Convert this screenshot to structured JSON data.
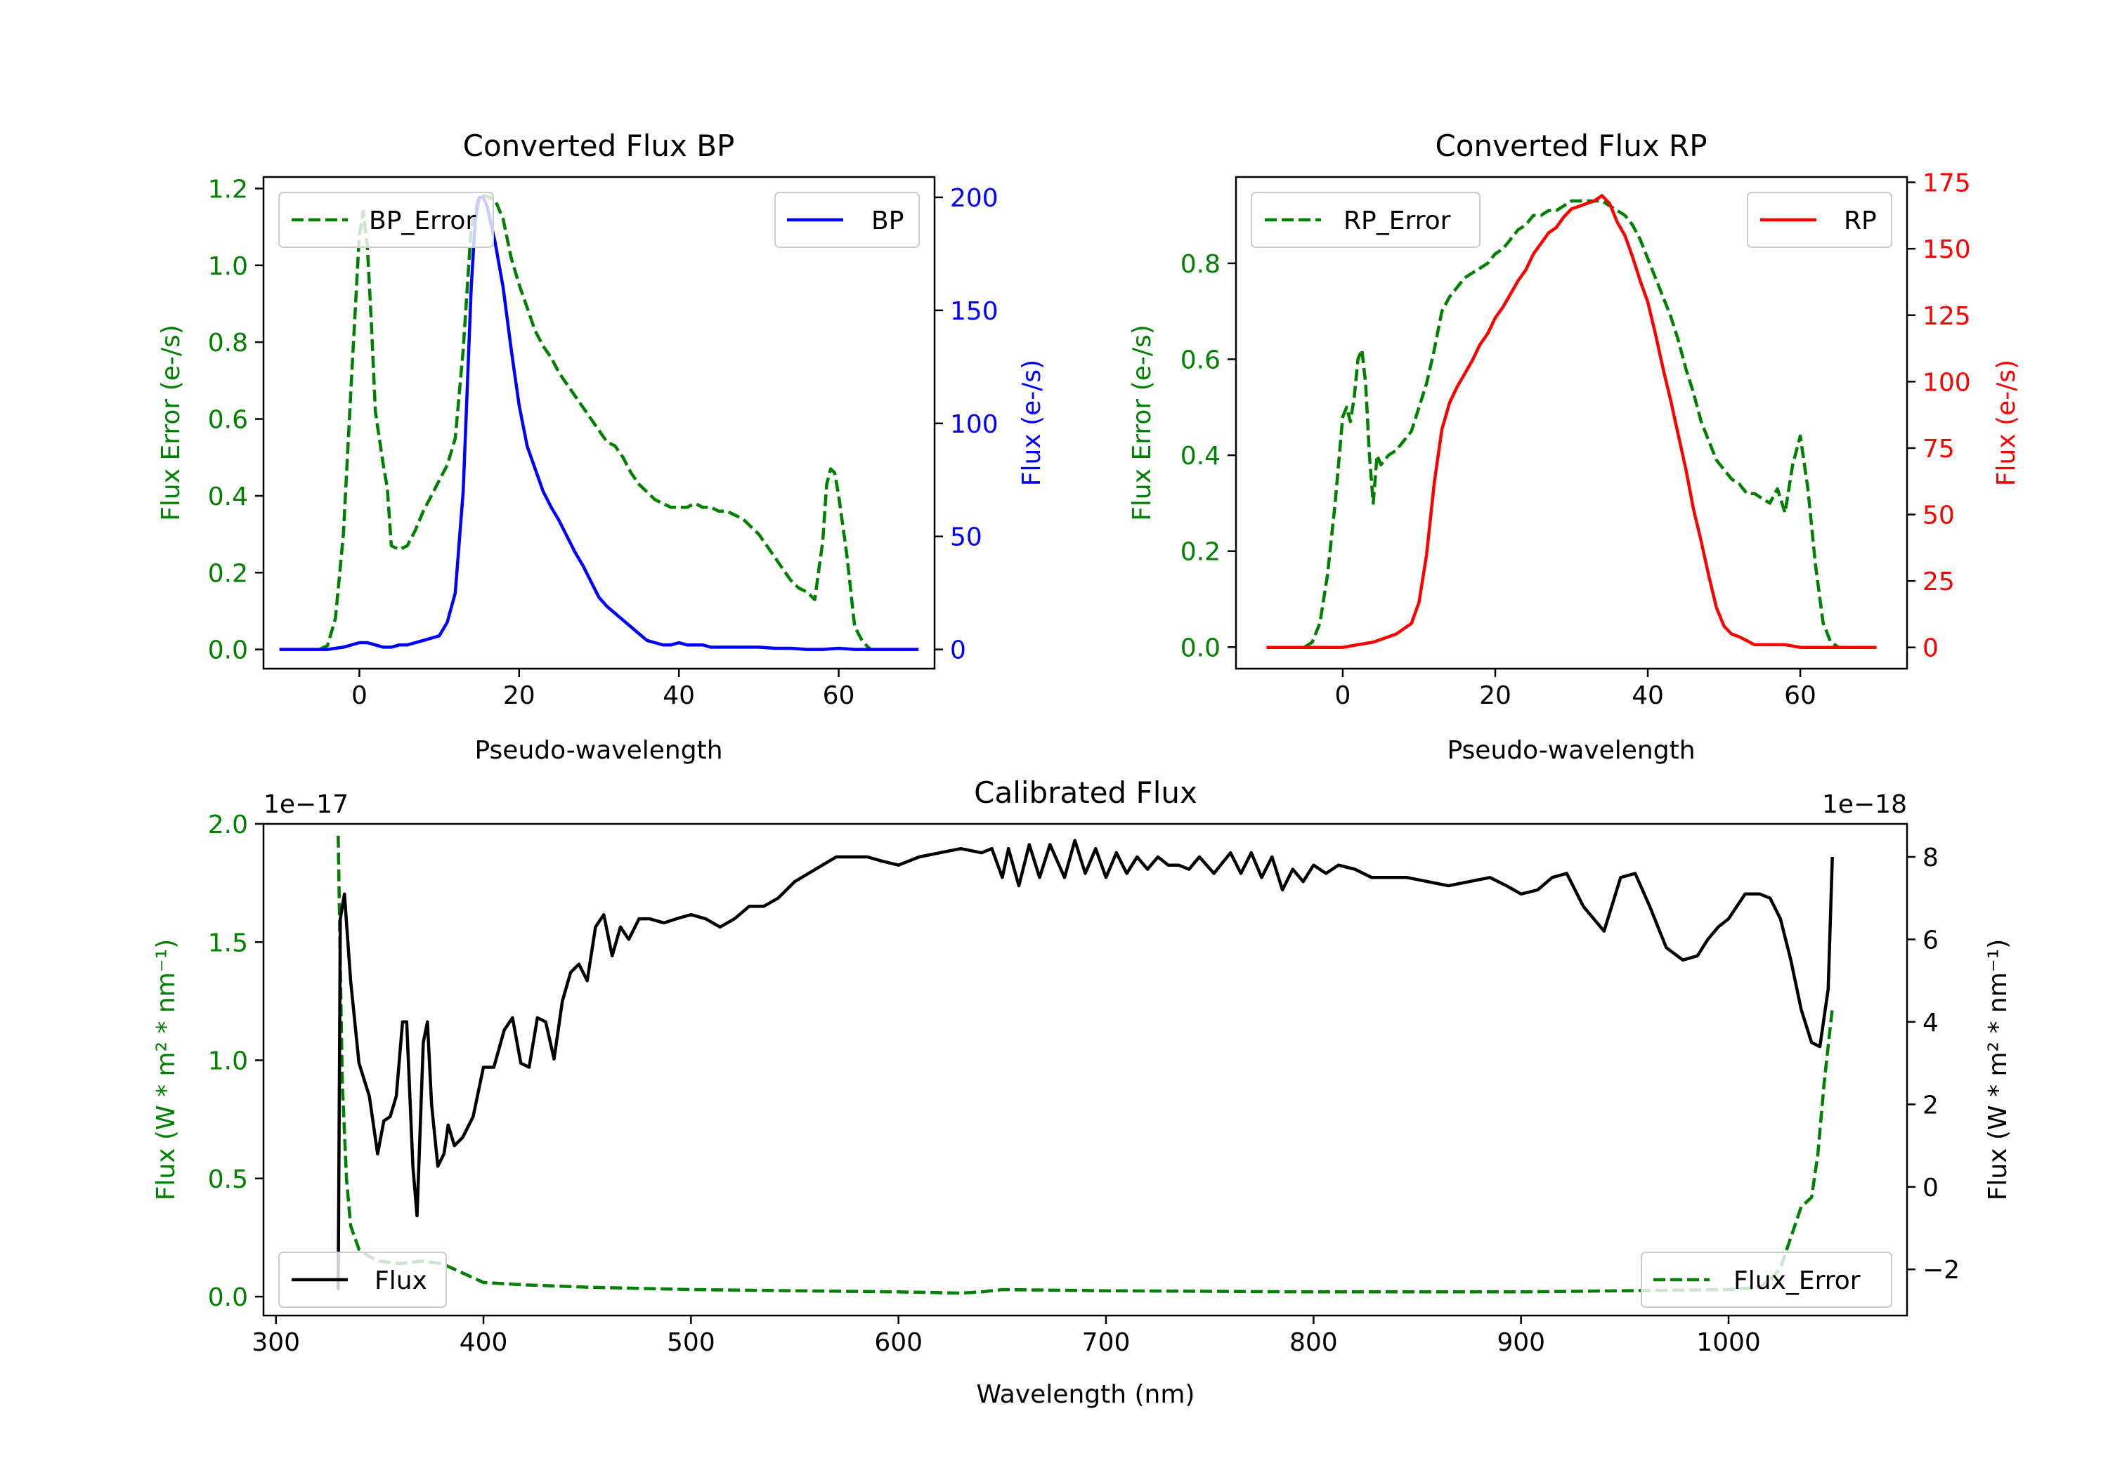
{
  "colors": {
    "error": "#008000",
    "bp": "#0000ff",
    "rp": "#ff0000",
    "flux": "#000000"
  },
  "chart_data": [
    {
      "id": "bp",
      "type": "line",
      "title": "Converted Flux BP",
      "xlabel": "Pseudo-wavelength",
      "ylabel_left": "Flux Error (e-/s)",
      "ylabel_right": "Flux (e-/s)",
      "xlim": [
        -12,
        72
      ],
      "ylim_left": [
        -0.05,
        1.23
      ],
      "ylim_right": [
        -8.5,
        209
      ],
      "xticks": [
        0,
        20,
        40,
        60
      ],
      "yticks_left": [
        0.0,
        0.2,
        0.4,
        0.6,
        0.8,
        1.0,
        1.2
      ],
      "yticks_right": [
        0,
        50,
        100,
        150,
        200
      ],
      "legend_left": "BP_Error",
      "legend_right": "BP",
      "series": [
        {
          "name": "BP_Error",
          "axis": "left",
          "style": "dashed",
          "color": "#008000",
          "x": [
            -5,
            -4,
            -3,
            -2,
            -1,
            0,
            0.5,
            1,
            1.5,
            2,
            3,
            3.5,
            4,
            5,
            6,
            7,
            8,
            9,
            10,
            11,
            12,
            13,
            14,
            15,
            16,
            17,
            18,
            19,
            20,
            21,
            22,
            23,
            24,
            25,
            26,
            27,
            28,
            29,
            30,
            31,
            32,
            33,
            34,
            35,
            36,
            37,
            38,
            39,
            40,
            41,
            42,
            43,
            44,
            45,
            46,
            47,
            48,
            49,
            50,
            51,
            52,
            53,
            54,
            55,
            56,
            57,
            58,
            58.5,
            59,
            59.5,
            60,
            61,
            62,
            63,
            64
          ],
          "y": [
            0.0,
            0.01,
            0.08,
            0.3,
            0.7,
            1.08,
            1.14,
            1.05,
            0.85,
            0.62,
            0.48,
            0.42,
            0.27,
            0.26,
            0.27,
            0.31,
            0.36,
            0.4,
            0.44,
            0.48,
            0.55,
            0.78,
            1.1,
            1.18,
            1.18,
            1.17,
            1.12,
            1.02,
            0.95,
            0.89,
            0.83,
            0.79,
            0.76,
            0.72,
            0.69,
            0.66,
            0.63,
            0.6,
            0.57,
            0.54,
            0.53,
            0.5,
            0.46,
            0.43,
            0.41,
            0.39,
            0.38,
            0.37,
            0.37,
            0.37,
            0.38,
            0.37,
            0.37,
            0.36,
            0.36,
            0.35,
            0.34,
            0.32,
            0.3,
            0.27,
            0.24,
            0.21,
            0.18,
            0.16,
            0.15,
            0.13,
            0.28,
            0.43,
            0.47,
            0.46,
            0.4,
            0.25,
            0.06,
            0.02,
            0.0
          ]
        },
        {
          "name": "BP",
          "axis": "right",
          "style": "solid",
          "color": "#0000ff",
          "x": [
            -10,
            -4,
            -2,
            0,
            1,
            2,
            3,
            4,
            5,
            6,
            7,
            8,
            9,
            10,
            11,
            12,
            13,
            14,
            14.5,
            15,
            15.5,
            16,
            17,
            18,
            19,
            20,
            21,
            22,
            23,
            24,
            25,
            26,
            27,
            28,
            29,
            30,
            31,
            32,
            33,
            34,
            35,
            36,
            37,
            38,
            39,
            40,
            41,
            42,
            43,
            44,
            45,
            46,
            48,
            50,
            52,
            54,
            56,
            58,
            60,
            62,
            64,
            66,
            68,
            70
          ],
          "y": [
            0,
            0,
            1,
            3,
            3,
            2,
            1,
            1,
            2,
            2,
            3,
            4,
            5,
            6,
            12,
            25,
            70,
            160,
            190,
            200,
            200,
            196,
            180,
            160,
            133,
            108,
            90,
            80,
            70,
            63,
            57,
            50,
            43,
            37,
            30,
            23,
            19,
            16,
            13,
            10,
            7,
            4,
            3,
            2,
            2,
            3,
            2,
            2,
            2,
            1,
            1,
            1,
            1,
            1,
            0.5,
            0.5,
            0,
            0,
            0.5,
            0,
            0,
            0,
            0,
            0
          ]
        }
      ]
    },
    {
      "id": "rp",
      "type": "line",
      "title": "Converted Flux RP",
      "xlabel": "Pseudo-wavelength",
      "ylabel_left": "Flux Error (e-/s)",
      "ylabel_right": "Flux (e-/s)",
      "xlim": [
        -14,
        74
      ],
      "ylim_left": [
        -0.045,
        0.98
      ],
      "ylim_right": [
        -8,
        177
      ],
      "xticks": [
        0,
        20,
        40,
        60
      ],
      "yticks_left": [
        0.0,
        0.2,
        0.4,
        0.6,
        0.8
      ],
      "yticks_right": [
        0,
        25,
        50,
        75,
        100,
        125,
        150,
        175
      ],
      "legend_left": "RP_Error",
      "legend_right": "RP",
      "series": [
        {
          "name": "RP_Error",
          "axis": "left",
          "style": "dashed",
          "color": "#008000",
          "x": [
            -5,
            -4,
            -3,
            -2,
            -1,
            0,
            0.5,
            1,
            1.5,
            2,
            2.5,
            3,
            3.5,
            4,
            4.5,
            5,
            6,
            7,
            8,
            9,
            10,
            11,
            12,
            13,
            14,
            15,
            16,
            17,
            18,
            19,
            20,
            21,
            22,
            23,
            24,
            25,
            26,
            27,
            28,
            29,
            30,
            31,
            32,
            33,
            34,
            35,
            36,
            37,
            38,
            39,
            40,
            41,
            42,
            43,
            44,
            45,
            46,
            47,
            48,
            49,
            50,
            51,
            52,
            53,
            54,
            55,
            56,
            57,
            58,
            59,
            60,
            61,
            62,
            63,
            64,
            65
          ],
          "y": [
            0.0,
            0.01,
            0.05,
            0.15,
            0.3,
            0.48,
            0.5,
            0.47,
            0.52,
            0.6,
            0.62,
            0.55,
            0.4,
            0.3,
            0.4,
            0.38,
            0.4,
            0.41,
            0.43,
            0.45,
            0.5,
            0.55,
            0.62,
            0.7,
            0.73,
            0.75,
            0.77,
            0.78,
            0.79,
            0.8,
            0.82,
            0.83,
            0.85,
            0.87,
            0.88,
            0.9,
            0.9,
            0.91,
            0.91,
            0.92,
            0.93,
            0.93,
            0.93,
            0.93,
            0.93,
            0.92,
            0.91,
            0.9,
            0.88,
            0.85,
            0.81,
            0.77,
            0.73,
            0.69,
            0.64,
            0.58,
            0.53,
            0.47,
            0.43,
            0.39,
            0.37,
            0.35,
            0.34,
            0.32,
            0.32,
            0.31,
            0.3,
            0.33,
            0.28,
            0.38,
            0.44,
            0.33,
            0.17,
            0.05,
            0.01,
            0.0
          ]
        },
        {
          "name": "RP",
          "axis": "right",
          "style": "solid",
          "color": "#ff0000",
          "x": [
            -10,
            -6,
            -4,
            -2,
            0,
            2,
            4,
            6,
            7,
            8,
            9,
            10,
            11,
            12,
            13,
            14,
            15,
            16,
            17,
            18,
            19,
            20,
            21,
            22,
            23,
            24,
            25,
            26,
            27,
            28,
            29,
            30,
            31,
            32,
            33,
            34,
            35,
            36,
            37,
            38,
            39,
            40,
            41,
            42,
            43,
            44,
            45,
            46,
            47,
            48,
            49,
            50,
            51,
            52,
            54,
            56,
            58,
            60,
            62,
            64,
            66,
            68,
            70
          ],
          "y": [
            0,
            0,
            0,
            0,
            0,
            1,
            2,
            4,
            5,
            7,
            9,
            17,
            35,
            62,
            82,
            92,
            98,
            103,
            108,
            114,
            118,
            124,
            128,
            133,
            138,
            142,
            148,
            152,
            156,
            158,
            162,
            165,
            166,
            167,
            168,
            170,
            167,
            160,
            155,
            147,
            138,
            130,
            118,
            105,
            93,
            80,
            67,
            52,
            40,
            27,
            15,
            8,
            5,
            4,
            1,
            1,
            1,
            0,
            0,
            0,
            0,
            0,
            0
          ]
        }
      ]
    },
    {
      "id": "calibrated",
      "type": "line",
      "title": "Calibrated Flux",
      "xlabel": "Wavelength (nm)",
      "ylabel_left": "Flux (W * m² * nm⁻¹)",
      "ylabel_right": "Flux (W * m² * nm⁻¹)",
      "offset_left": "1e−17",
      "offset_right": "1e−18",
      "xlim": [
        294,
        1086
      ],
      "ylim_left": [
        -0.08,
        2.0
      ],
      "ylim_right": [
        -3.12,
        8.8
      ],
      "xticks": [
        300,
        400,
        500,
        600,
        700,
        800,
        900,
        1000
      ],
      "yticks_left": [
        0.0,
        0.5,
        1.0,
        1.5,
        2.0
      ],
      "yticks_right": [
        -2,
        0,
        2,
        4,
        6,
        8
      ],
      "legend_left": "Flux",
      "legend_right": "Flux_Error",
      "series": [
        {
          "name": "Flux_Error",
          "axis": "left",
          "style": "dashed",
          "color": "#008000",
          "x": [
            330,
            331,
            332,
            334,
            336,
            340,
            345,
            350,
            360,
            370,
            380,
            390,
            400,
            420,
            450,
            500,
            550,
            600,
            630,
            640,
            650,
            700,
            800,
            900,
            1000,
            1015,
            1020,
            1025,
            1030,
            1035,
            1040,
            1043,
            1046,
            1050
          ],
          "y": [
            1.95,
            1.4,
            0.9,
            0.5,
            0.3,
            0.2,
            0.17,
            0.15,
            0.14,
            0.15,
            0.14,
            0.1,
            0.06,
            0.05,
            0.04,
            0.03,
            0.025,
            0.02,
            0.015,
            0.02,
            0.03,
            0.025,
            0.02,
            0.02,
            0.03,
            0.04,
            0.07,
            0.12,
            0.25,
            0.38,
            0.42,
            0.6,
            0.9,
            1.22
          ]
        },
        {
          "name": "Flux",
          "axis": "right",
          "style": "solid",
          "color": "#000000",
          "x": [
            330,
            331,
            333,
            336,
            340,
            345,
            349,
            352,
            355,
            358,
            361,
            363,
            366,
            368,
            371,
            373,
            375,
            378,
            381,
            383,
            386,
            390,
            395,
            400,
            405,
            410,
            414,
            418,
            422,
            426,
            430,
            434,
            438,
            442,
            446,
            450,
            454,
            458,
            462,
            466,
            470,
            475,
            480,
            487,
            493,
            500,
            507,
            514,
            521,
            528,
            535,
            542,
            550,
            560,
            570,
            578,
            585,
            592,
            600,
            610,
            620,
            630,
            640,
            645,
            650,
            653,
            658,
            663,
            668,
            673,
            680,
            685,
            690,
            695,
            700,
            705,
            710,
            715,
            720,
            725,
            730,
            735,
            740,
            745,
            752,
            760,
            765,
            770,
            775,
            780,
            785,
            790,
            795,
            800,
            806,
            812,
            820,
            828,
            835,
            845,
            855,
            865,
            875,
            885,
            893,
            900,
            908,
            915,
            922,
            930,
            940,
            948,
            955,
            962,
            970,
            978,
            985,
            990,
            995,
            1000,
            1008,
            1015,
            1020,
            1025,
            1030,
            1035,
            1040,
            1044,
            1048,
            1050
          ],
          "y": [
            -2.5,
            6.5,
            7.1,
            5.0,
            3.0,
            2.2,
            0.8,
            1.6,
            1.7,
            2.2,
            4.0,
            4.0,
            0.5,
            -0.7,
            3.5,
            4.0,
            2.0,
            0.5,
            0.8,
            1.5,
            1.0,
            1.2,
            1.7,
            2.9,
            2.9,
            3.8,
            4.1,
            3.0,
            2.9,
            4.1,
            4.0,
            3.1,
            4.5,
            5.2,
            5.4,
            5.0,
            6.3,
            6.6,
            5.6,
            6.3,
            6.0,
            6.5,
            6.5,
            6.4,
            6.5,
            6.6,
            6.5,
            6.3,
            6.5,
            6.8,
            6.8,
            7.0,
            7.4,
            7.7,
            8.0,
            8.0,
            8.0,
            7.9,
            7.8,
            8.0,
            8.1,
            8.2,
            8.1,
            8.2,
            7.5,
            8.2,
            7.3,
            8.3,
            7.5,
            8.3,
            7.5,
            8.4,
            7.6,
            8.2,
            7.5,
            8.1,
            7.6,
            8.0,
            7.7,
            8.0,
            7.8,
            7.8,
            7.7,
            8.0,
            7.6,
            8.1,
            7.6,
            8.1,
            7.5,
            8.0,
            7.2,
            7.7,
            7.4,
            7.8,
            7.6,
            7.8,
            7.7,
            7.5,
            7.5,
            7.5,
            7.4,
            7.3,
            7.4,
            7.5,
            7.3,
            7.1,
            7.2,
            7.5,
            7.6,
            6.8,
            6.2,
            7.5,
            7.6,
            6.8,
            5.8,
            5.5,
            5.6,
            6.0,
            6.3,
            6.5,
            7.1,
            7.1,
            7.0,
            6.5,
            5.5,
            4.3,
            3.5,
            3.4,
            4.8,
            8.0
          ]
        }
      ]
    }
  ]
}
